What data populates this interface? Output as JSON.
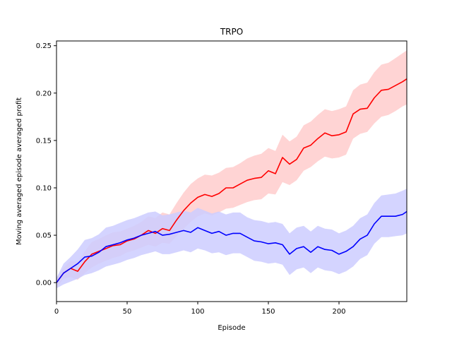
{
  "chart_data": {
    "type": "line",
    "title": "TRPO",
    "xlabel": "Episode",
    "ylabel": "Moving averaged episode averaged profit",
    "xlim": [
      0,
      248
    ],
    "ylim": [
      -0.02,
      0.255
    ],
    "xticks": [
      0,
      50,
      100,
      150,
      200
    ],
    "xtick_labels": [
      "0",
      "50",
      "100",
      "150",
      "200"
    ],
    "yticks": [
      0.0,
      0.05,
      0.1,
      0.15,
      0.2,
      0.25
    ],
    "ytick_labels": [
      "0.00",
      "0.05",
      "0.10",
      "0.15",
      "0.20",
      "0.25"
    ],
    "grid": false,
    "legend": false,
    "series": [
      {
        "color": "#ff0000",
        "band_color": "#ffcccc",
        "x": [
          0,
          5,
          10,
          15,
          20,
          25,
          30,
          35,
          40,
          45,
          50,
          55,
          60,
          65,
          70,
          75,
          80,
          85,
          90,
          95,
          100,
          105,
          110,
          115,
          120,
          125,
          130,
          135,
          140,
          145,
          150,
          155,
          160,
          165,
          170,
          175,
          180,
          185,
          190,
          195,
          200,
          205,
          210,
          215,
          220,
          225,
          230,
          235,
          240,
          245,
          248
        ],
        "values": [
          0.0,
          0.01,
          0.015,
          0.012,
          0.022,
          0.03,
          0.033,
          0.036,
          0.039,
          0.04,
          0.044,
          0.046,
          0.05,
          0.055,
          0.052,
          0.057,
          0.055,
          0.066,
          0.076,
          0.084,
          0.09,
          0.093,
          0.091,
          0.094,
          0.1,
          0.1,
          0.104,
          0.108,
          0.11,
          0.111,
          0.118,
          0.115,
          0.132,
          0.125,
          0.13,
          0.142,
          0.145,
          0.152,
          0.158,
          0.155,
          0.156,
          0.159,
          0.178,
          0.183,
          0.184,
          0.195,
          0.203,
          0.204,
          0.208,
          0.212,
          0.215
        ],
        "lower": [
          -0.005,
          0.004,
          0.006,
          0.003,
          0.01,
          0.016,
          0.02,
          0.023,
          0.026,
          0.028,
          0.032,
          0.034,
          0.037,
          0.04,
          0.038,
          0.042,
          0.041,
          0.049,
          0.057,
          0.064,
          0.07,
          0.073,
          0.071,
          0.074,
          0.078,
          0.079,
          0.082,
          0.085,
          0.087,
          0.088,
          0.094,
          0.093,
          0.106,
          0.103,
          0.108,
          0.118,
          0.122,
          0.128,
          0.133,
          0.131,
          0.132,
          0.135,
          0.152,
          0.157,
          0.159,
          0.168,
          0.175,
          0.177,
          0.181,
          0.186,
          0.188
        ],
        "upper": [
          0.004,
          0.016,
          0.023,
          0.022,
          0.033,
          0.043,
          0.046,
          0.05,
          0.053,
          0.054,
          0.057,
          0.06,
          0.064,
          0.07,
          0.068,
          0.074,
          0.072,
          0.084,
          0.095,
          0.104,
          0.11,
          0.114,
          0.113,
          0.116,
          0.121,
          0.122,
          0.126,
          0.131,
          0.134,
          0.136,
          0.142,
          0.139,
          0.156,
          0.149,
          0.154,
          0.166,
          0.17,
          0.177,
          0.183,
          0.181,
          0.183,
          0.186,
          0.203,
          0.209,
          0.211,
          0.222,
          0.23,
          0.232,
          0.237,
          0.242,
          0.245
        ]
      },
      {
        "color": "#0000ff",
        "band_color": "#ccccff",
        "x": [
          0,
          5,
          10,
          15,
          20,
          25,
          30,
          35,
          40,
          45,
          50,
          55,
          60,
          65,
          70,
          75,
          80,
          85,
          90,
          95,
          100,
          105,
          110,
          115,
          120,
          125,
          130,
          135,
          140,
          145,
          150,
          155,
          160,
          165,
          170,
          175,
          180,
          185,
          190,
          195,
          200,
          205,
          210,
          215,
          220,
          225,
          230,
          235,
          240,
          245,
          248
        ],
        "values": [
          0.0,
          0.01,
          0.015,
          0.02,
          0.027,
          0.028,
          0.032,
          0.038,
          0.04,
          0.042,
          0.045,
          0.047,
          0.05,
          0.052,
          0.054,
          0.05,
          0.051,
          0.053,
          0.055,
          0.053,
          0.058,
          0.055,
          0.052,
          0.054,
          0.05,
          0.052,
          0.052,
          0.048,
          0.044,
          0.043,
          0.041,
          0.042,
          0.04,
          0.03,
          0.036,
          0.038,
          0.032,
          0.038,
          0.035,
          0.034,
          0.03,
          0.033,
          0.038,
          0.046,
          0.05,
          0.062,
          0.07,
          0.07,
          0.07,
          0.072,
          0.075
        ],
        "lower": [
          -0.006,
          -0.002,
          0.001,
          0.004,
          0.008,
          0.01,
          0.013,
          0.017,
          0.019,
          0.021,
          0.024,
          0.026,
          0.029,
          0.031,
          0.033,
          0.03,
          0.03,
          0.032,
          0.034,
          0.032,
          0.036,
          0.034,
          0.031,
          0.032,
          0.029,
          0.031,
          0.031,
          0.027,
          0.023,
          0.022,
          0.02,
          0.021,
          0.019,
          0.008,
          0.014,
          0.016,
          0.01,
          0.016,
          0.013,
          0.012,
          0.009,
          0.012,
          0.017,
          0.025,
          0.029,
          0.041,
          0.048,
          0.048,
          0.049,
          0.05,
          0.052
        ],
        "upper": [
          0.005,
          0.02,
          0.027,
          0.035,
          0.045,
          0.047,
          0.051,
          0.058,
          0.06,
          0.063,
          0.066,
          0.068,
          0.071,
          0.074,
          0.075,
          0.071,
          0.072,
          0.074,
          0.076,
          0.074,
          0.079,
          0.076,
          0.073,
          0.075,
          0.072,
          0.074,
          0.074,
          0.069,
          0.066,
          0.065,
          0.063,
          0.064,
          0.062,
          0.052,
          0.058,
          0.06,
          0.054,
          0.06,
          0.057,
          0.056,
          0.052,
          0.055,
          0.06,
          0.068,
          0.072,
          0.084,
          0.092,
          0.093,
          0.094,
          0.097,
          0.099
        ]
      }
    ]
  }
}
